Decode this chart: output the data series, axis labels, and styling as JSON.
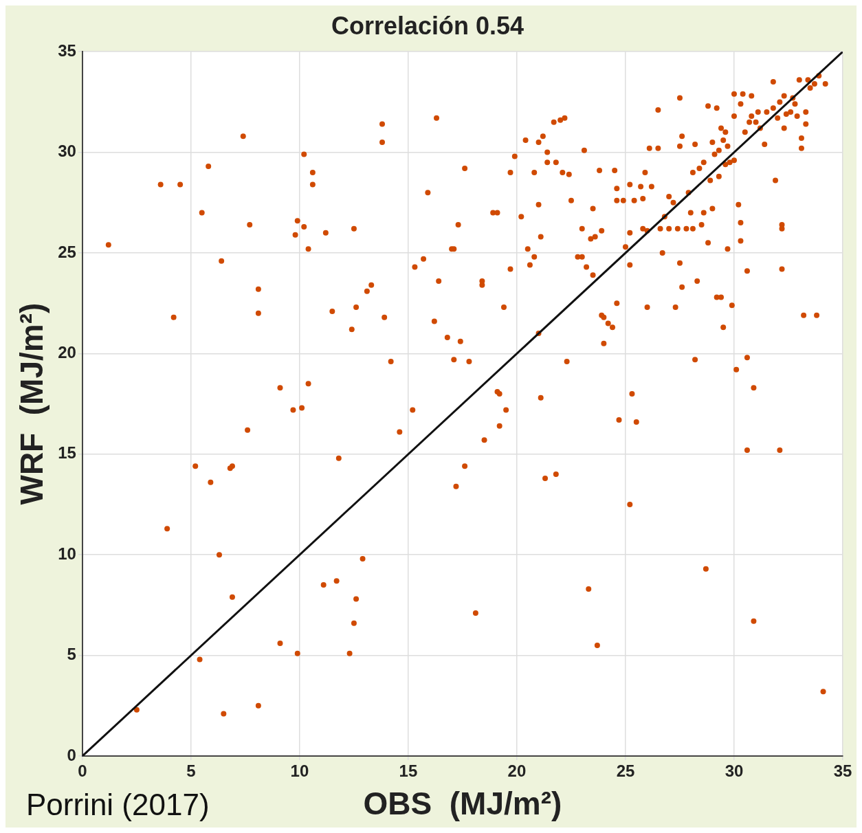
{
  "chart_data": {
    "type": "scatter",
    "title": "Correlación 0.54",
    "xlabel": "OBS  (MJ/m²)",
    "ylabel": "WRF  (MJ/m²)",
    "annotations": [
      "Porrini (2017)"
    ],
    "xlim": [
      0,
      35
    ],
    "ylim": [
      0,
      35
    ],
    "xticks": [
      0,
      5,
      10,
      15,
      20,
      25,
      30,
      35
    ],
    "yticks": [
      0,
      5,
      10,
      15,
      20,
      25,
      30,
      35
    ],
    "grid": true,
    "series": [
      {
        "marker": "circle",
        "color": "#d04a02",
        "x": [
          1.2,
          2.5,
          3.6,
          3.9,
          4.2,
          4.5,
          5.2,
          5.4,
          5.5,
          5.8,
          5.9,
          6.3,
          6.4,
          6.5,
          6.8,
          6.9,
          6.9,
          7.4,
          7.6,
          7.7,
          8.1,
          8.1,
          8.1,
          9.1,
          9.1,
          9.7,
          9.8,
          9.9,
          9.9,
          10.1,
          10.2,
          10.2,
          10.4,
          10.4,
          10.6,
          10.6,
          11.1,
          11.2,
          11.5,
          11.7,
          11.8,
          12.3,
          12.4,
          12.5,
          12.5,
          12.6,
          12.6,
          12.9,
          13.1,
          13.3,
          13.8,
          13.8,
          13.9,
          14.2,
          14.6,
          15.2,
          15.3,
          15.7,
          15.9,
          16.2,
          16.3,
          16.4,
          16.8,
          17.0,
          17.1,
          17.1,
          17.2,
          17.3,
          17.4,
          17.6,
          17.6,
          17.8,
          18.1,
          18.4,
          18.4,
          18.5,
          18.9,
          19.1,
          19.1,
          19.2,
          19.2,
          19.4,
          19.5,
          19.7,
          19.7,
          19.9,
          20.2,
          20.4,
          20.5,
          20.6,
          20.8,
          20.8,
          21.0,
          21.0,
          21.0,
          21.1,
          21.1,
          21.2,
          21.3,
          21.4,
          21.4,
          21.7,
          21.8,
          21.8,
          22.0,
          22.1,
          22.2,
          22.3,
          22.4,
          22.5,
          22.8,
          23.0,
          23.0,
          23.1,
          23.2,
          23.3,
          23.4,
          23.5,
          23.5,
          23.6,
          23.7,
          23.8,
          23.9,
          23.9,
          24.0,
          24.0,
          24.2,
          24.4,
          24.5,
          24.6,
          24.6,
          24.6,
          24.7,
          24.9,
          25.0,
          25.2,
          25.2,
          25.2,
          25.2,
          25.3,
          25.4,
          25.5,
          25.7,
          25.8,
          25.8,
          25.9,
          26.0,
          26.0,
          26.1,
          26.2,
          26.5,
          26.5,
          26.6,
          26.7,
          26.8,
          27.0,
          27.0,
          27.2,
          27.3,
          27.4,
          27.5,
          27.5,
          27.5,
          27.6,
          27.6,
          27.8,
          27.9,
          28.0,
          28.1,
          28.1,
          28.2,
          28.2,
          28.3,
          28.4,
          28.5,
          28.6,
          28.6,
          28.7,
          28.8,
          28.8,
          28.9,
          29.0,
          29.0,
          29.1,
          29.2,
          29.2,
          29.3,
          29.3,
          29.4,
          29.4,
          29.5,
          29.5,
          29.6,
          29.6,
          29.7,
          29.7,
          29.8,
          29.9,
          30.0,
          30.0,
          30.0,
          30.1,
          30.2,
          30.3,
          30.3,
          30.3,
          30.4,
          30.5,
          30.6,
          30.6,
          30.6,
          30.7,
          30.8,
          30.8,
          30.9,
          30.9,
          31.0,
          31.1,
          31.2,
          31.4,
          31.5,
          31.8,
          31.8,
          31.9,
          32.0,
          32.1,
          32.1,
          32.2,
          32.2,
          32.2,
          32.3,
          32.3,
          32.4,
          32.6,
          32.7,
          32.8,
          32.9,
          33.0,
          33.1,
          33.1,
          33.2,
          33.3,
          33.3,
          33.4,
          33.5,
          33.7,
          33.8,
          33.9,
          34.1,
          34.2
        ],
        "values": [
          25.4,
          2.3,
          28.4,
          11.3,
          21.8,
          28.4,
          14.4,
          4.8,
          27.0,
          29.3,
          13.6,
          10.0,
          24.6,
          2.1,
          14.3,
          14.4,
          7.9,
          30.8,
          16.2,
          26.4,
          22.0,
          23.2,
          2.5,
          18.3,
          5.6,
          17.2,
          25.9,
          26.6,
          5.1,
          17.3,
          26.3,
          29.9,
          25.2,
          18.5,
          29.0,
          28.4,
          8.5,
          26.0,
          22.1,
          8.7,
          14.8,
          5.1,
          21.2,
          26.2,
          6.6,
          22.3,
          7.8,
          9.8,
          23.1,
          23.4,
          31.4,
          30.5,
          21.8,
          19.6,
          16.1,
          17.2,
          24.3,
          24.7,
          28.0,
          21.6,
          31.7,
          23.6,
          20.8,
          25.2,
          25.2,
          19.7,
          13.4,
          26.4,
          20.6,
          14.4,
          29.2,
          19.6,
          7.1,
          23.4,
          23.6,
          15.7,
          27.0,
          27.0,
          18.1,
          16.4,
          18.0,
          22.3,
          17.2,
          24.2,
          29.0,
          29.8,
          26.8,
          30.6,
          25.2,
          24.4,
          24.8,
          29.0,
          30.5,
          27.4,
          21.0,
          25.8,
          17.8,
          30.8,
          13.8,
          30.0,
          29.5,
          31.5,
          14.0,
          29.5,
          31.6,
          29.0,
          31.7,
          19.6,
          28.9,
          27.6,
          24.8,
          24.8,
          26.2,
          30.1,
          24.3,
          8.3,
          25.7,
          27.2,
          23.9,
          25.8,
          5.5,
          29.1,
          26.1,
          21.9,
          21.8,
          20.5,
          21.5,
          21.3,
          29.1,
          28.2,
          27.6,
          22.5,
          16.7,
          27.6,
          25.3,
          26.0,
          24.4,
          28.4,
          12.5,
          18.0,
          27.6,
          16.6,
          28.3,
          27.7,
          26.2,
          29.0,
          26.1,
          22.3,
          30.2,
          28.3,
          30.2,
          32.1,
          26.2,
          25.0,
          26.8,
          27.8,
          26.2,
          27.5,
          22.3,
          26.2,
          30.3,
          32.7,
          24.5,
          23.3,
          30.8,
          26.2,
          28.0,
          27.0,
          26.2,
          29.0,
          30.4,
          19.7,
          23.6,
          29.2,
          26.4,
          27.0,
          29.5,
          9.3,
          25.5,
          32.3,
          28.6,
          27.2,
          30.5,
          29.9,
          22.8,
          32.2,
          28.8,
          30.1,
          22.8,
          31.2,
          21.3,
          30.6,
          31.0,
          29.4,
          25.2,
          30.3,
          29.5,
          22.4,
          31.8,
          32.9,
          29.6,
          19.2,
          27.4,
          26.5,
          25.6,
          32.4,
          32.9,
          31.0,
          24.1,
          19.8,
          15.2,
          31.5,
          32.8,
          31.8,
          18.3,
          6.7,
          31.5,
          32.0,
          31.2,
          30.4,
          32.0,
          33.5,
          32.2,
          28.6,
          31.7,
          32.5,
          15.2,
          26.4,
          26.2,
          24.2,
          32.8,
          31.2,
          31.9,
          32.0,
          32.7,
          32.4,
          31.8,
          33.6,
          30.7,
          30.2,
          21.9,
          31.4,
          32.0,
          33.6,
          33.2,
          33.4,
          21.9,
          33.8,
          3.2,
          33.4
        ]
      },
      {
        "type": "line",
        "marker": "none",
        "color": "#111111",
        "x": [
          0,
          35
        ],
        "values": [
          0,
          35
        ]
      }
    ]
  }
}
